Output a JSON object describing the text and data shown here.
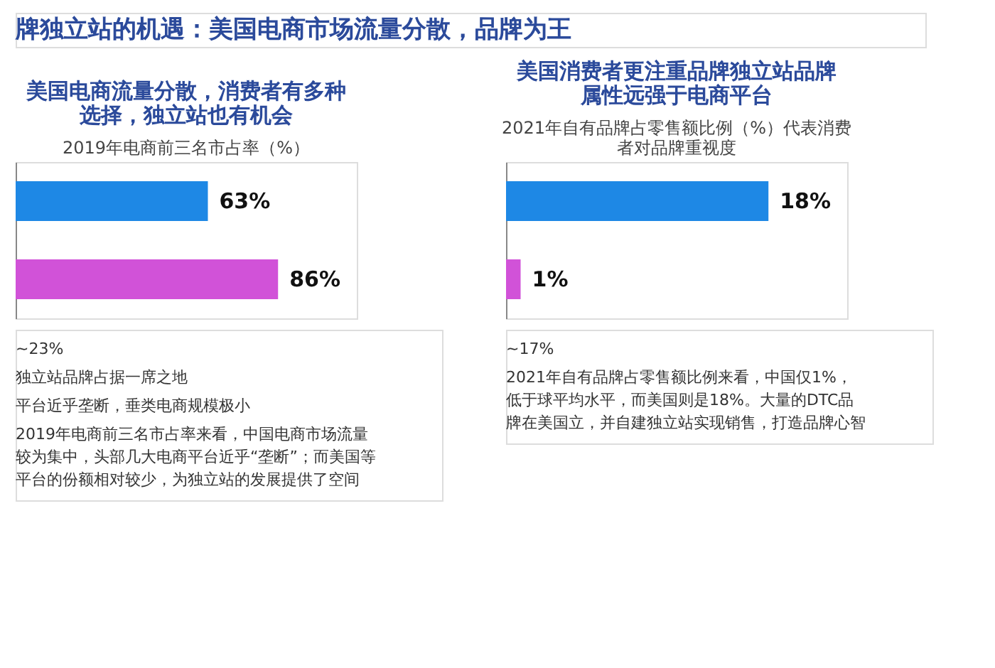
{
  "chart_data": [
    {
      "type": "other",
      "title": "牌独立站的机遇：美国电商市场流量分散，品牌为王"
    },
    {
      "type": "bar",
      "orientation": "horizontal",
      "title": "美国电商流量分散，消费者有多种选择，独立站也有机会",
      "subtitle": "2019年电商前三名市占率（%）",
      "categories": [
        null,
        null
      ],
      "values": [
        63,
        86
      ],
      "colors": [
        "#1e88e5",
        "#d152d8"
      ],
      "data_labels": true,
      "value_labels": [
        "63%",
        "86%"
      ],
      "annotations": [
        "~23%",
        "独立站品牌占据一席之地",
        "平台近乎垄断，垂类电商规模极小",
        "2019年电商前三名市占率来看，中国电商市场流量较为集中，头部几大电商平台近乎“垄断”；而美国等平台的份额相对较少，为独立站的发展提供了空间"
      ]
    },
    {
      "type": "bar",
      "orientation": "horizontal",
      "title": "美国消费者更注重品牌独立站品牌属性远强于电商平台",
      "subtitle": "2021年自有品牌占零售额比例（%）代表消费者对品牌重视度",
      "categories": [
        null,
        null
      ],
      "values": [
        18,
        1
      ],
      "colors": [
        "#1e88e5",
        "#d152d8"
      ],
      "data_labels": true,
      "value_labels": [
        "18%",
        "1%"
      ],
      "annotations": [
        "~17%",
        "2021年自有品牌占零售额比例来看，中国仅1%，低于球平均水平，而美国则是18%。大量的DTC品牌在美国立，并自建独立站实现销售，打造品牌心智"
      ]
    }
  ]
}
